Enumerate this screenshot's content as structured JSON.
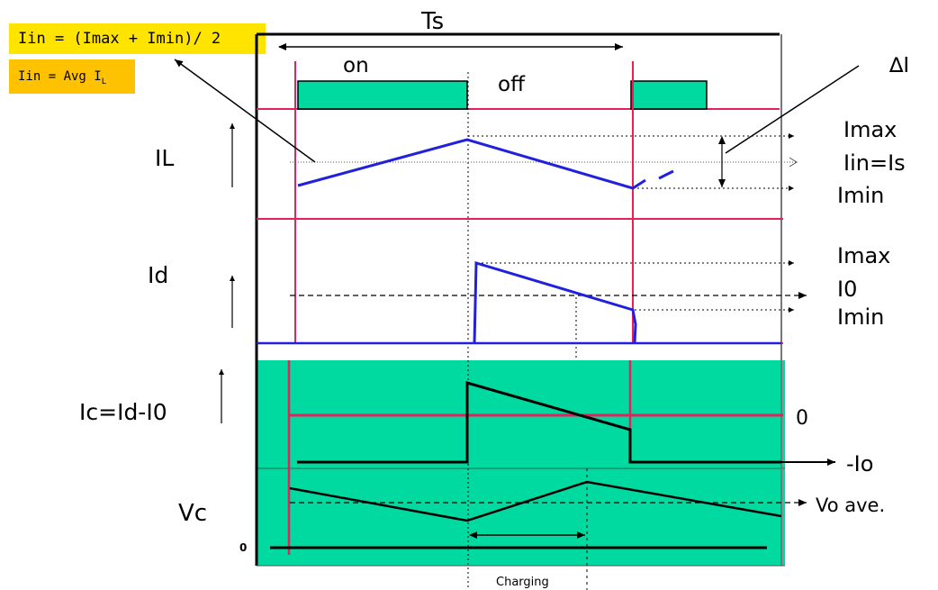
{
  "notes": {
    "iin_formula": "Iin = (Imax + Imin)/ 2",
    "iin_avg_prefix": "Iin = Avg I",
    "iin_avg_sub": "L"
  },
  "period": {
    "ts": "Ts",
    "on": "on",
    "off": "off",
    "delta_i": "∆I"
  },
  "traces": {
    "il": "IL",
    "id": "Id",
    "ic": "Ic=Id-I0",
    "vc": "Vc",
    "vc_zero": "0"
  },
  "levels": {
    "il_imax": "Imax",
    "il_iin": "Iin=Is",
    "il_imin": "Imin",
    "id_imax": "Imax",
    "id_i0": "I0",
    "id_imin": "Imin",
    "ic_zero": "0",
    "ic_neg_io": "-Io",
    "vo_ave": "Vo ave."
  },
  "charging": "Charging",
  "colors": {
    "switch_pulse": "#00d9a0",
    "panel": "#00d9a0",
    "red_line": "#e8205a",
    "blue_trace": "#2020dd",
    "note_yellow": "#ffe400",
    "note_orange": "#ffc200"
  }
}
